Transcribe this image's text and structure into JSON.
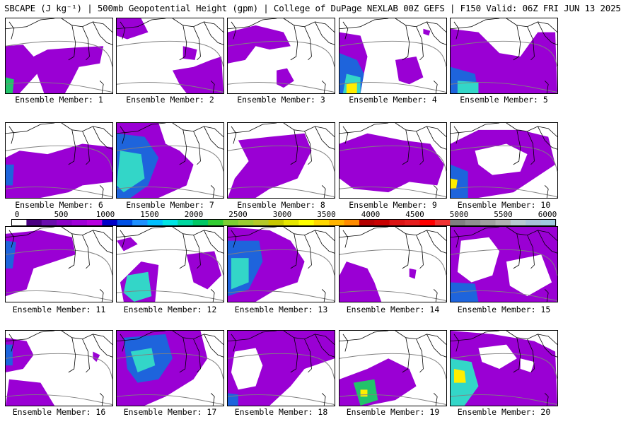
{
  "title": "SBCAPE (J kg⁻¹) | 500mb Geopotential Height (gpm) | College of DuPage NEXLAB 00Z GEFS | F150 Valid: 06Z FRI JUN 13 2025",
  "colorbar": {
    "ticks": [
      "0",
      "500",
      "1000",
      "1500",
      "2000",
      "2500",
      "3000",
      "3500",
      "4000",
      "4500",
      "5000",
      "5500",
      "6000"
    ],
    "colors": [
      "#ffffff",
      "#4b0082",
      "#6a0dad",
      "#8b00c8",
      "#a000d8",
      "#b800e0",
      "#0000c8",
      "#0050e6",
      "#1e90ff",
      "#00bfff",
      "#00e5e5",
      "#00d8a0",
      "#00c864",
      "#32cd32",
      "#7ccd32",
      "#9acd32",
      "#b4c828",
      "#c8c800",
      "#e6e600",
      "#ffff00",
      "#ffd700",
      "#ffb400",
      "#ff8c00",
      "#b40000",
      "#c80000",
      "#dc1414",
      "#e61e1e",
      "#ff0000",
      "#f03232",
      "#808080",
      "#909090",
      "#a0a0a0",
      "#b0b0b0",
      "#b8c8d0",
      "#a8c0d8",
      "#a0c8e0"
    ]
  },
  "legend_colors": {
    "purple": "#9a00d4",
    "dark_purple": "#5b0a8f",
    "blue": "#1e64dc",
    "cyan": "#33d6c8",
    "green": "#22c36a",
    "yellow": "#ffee00",
    "border": "#000000",
    "contour": "#808080"
  },
  "members": [
    {
      "label": "Ensemble Member: 1"
    },
    {
      "label": "Ensemble Member: 2"
    },
    {
      "label": "Ensemble Member: 3"
    },
    {
      "label": "Ensemble Member: 4"
    },
    {
      "label": "Ensemble Member: 5"
    },
    {
      "label": "Ensemble Member: 6"
    },
    {
      "label": "Ensemble Member: 7"
    },
    {
      "label": "Ensemble Member: 8"
    },
    {
      "label": "Ensemble Member: 9"
    },
    {
      "label": "Ensemble Member: 10"
    },
    {
      "label": "Ensemble Member: 11"
    },
    {
      "label": "Ensemble Member: 12"
    },
    {
      "label": "Ensemble Member: 13"
    },
    {
      "label": "Ensemble Member: 14"
    },
    {
      "label": "Ensemble Member: 15"
    },
    {
      "label": "Ensemble Member: 16"
    },
    {
      "label": "Ensemble Member: 17"
    },
    {
      "label": "Ensemble Member: 18"
    },
    {
      "label": "Ensemble Member: 19"
    },
    {
      "label": "Ensemble Member: 20"
    }
  ]
}
